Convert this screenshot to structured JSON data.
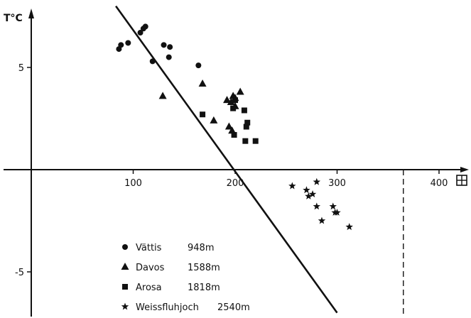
{
  "chart_data": {
    "type": "scatter",
    "title": "",
    "ylabel": "T°C",
    "xunit_symbol": "grid-square-symbol",
    "xlim": [
      -10,
      455
    ],
    "ylim": [
      -7,
      8.5
    ],
    "x_ticks": [
      100,
      200,
      300,
      400
    ],
    "y_ticks": [
      5,
      -5
    ],
    "x_tick_labels": [
      "100",
      "200",
      "300",
      "400"
    ],
    "y_tick_labels": [
      "5",
      "-5"
    ],
    "grid": false,
    "legend_position": "bottom-left",
    "reference_vertical_line": {
      "x": 365,
      "style": "dashed"
    },
    "fit_line": {
      "x1": 83,
      "y1": 8.0,
      "x2": 300,
      "y2": -7.0
    },
    "series": [
      {
        "name": "Vättis",
        "elevation": "948m",
        "marker": "circle",
        "points": [
          {
            "x": 86,
            "y": 5.9
          },
          {
            "x": 88,
            "y": 6.1
          },
          {
            "x": 95,
            "y": 6.2
          },
          {
            "x": 107,
            "y": 6.7
          },
          {
            "x": 110,
            "y": 6.9
          },
          {
            "x": 112,
            "y": 7.0
          },
          {
            "x": 119,
            "y": 5.3
          },
          {
            "x": 130,
            "y": 6.1
          },
          {
            "x": 135,
            "y": 5.5
          },
          {
            "x": 136,
            "y": 6.0
          },
          {
            "x": 164,
            "y": 5.1
          }
        ]
      },
      {
        "name": "Davos",
        "elevation": "1588m",
        "marker": "triangle",
        "points": [
          {
            "x": 129,
            "y": 3.6
          },
          {
            "x": 168,
            "y": 4.2
          },
          {
            "x": 179,
            "y": 2.4
          },
          {
            "x": 192,
            "y": 3.4
          },
          {
            "x": 196,
            "y": 3.3
          },
          {
            "x": 198,
            "y": 3.6
          },
          {
            "x": 200,
            "y": 3.5
          },
          {
            "x": 200,
            "y": 3.1
          },
          {
            "x": 205,
            "y": 3.8
          },
          {
            "x": 194,
            "y": 2.1
          },
          {
            "x": 197,
            "y": 1.9
          }
        ]
      },
      {
        "name": "Arosa",
        "elevation": "1818m",
        "marker": "square",
        "points": [
          {
            "x": 168,
            "y": 2.7
          },
          {
            "x": 198,
            "y": 3.0
          },
          {
            "x": 199,
            "y": 1.7
          },
          {
            "x": 200,
            "y": 3.4
          },
          {
            "x": 209,
            "y": 2.9
          },
          {
            "x": 210,
            "y": 1.4
          },
          {
            "x": 211,
            "y": 2.1
          },
          {
            "x": 212,
            "y": 2.3
          },
          {
            "x": 220,
            "y": 1.4
          }
        ]
      },
      {
        "name": "Weissfluhjoch",
        "elevation": "2540m",
        "marker": "star",
        "points": [
          {
            "x": 256,
            "y": -0.8
          },
          {
            "x": 270,
            "y": -1.0
          },
          {
            "x": 272,
            "y": -1.3
          },
          {
            "x": 276,
            "y": -1.2
          },
          {
            "x": 280,
            "y": -0.6
          },
          {
            "x": 280,
            "y": -1.8
          },
          {
            "x": 285,
            "y": -2.5
          },
          {
            "x": 296,
            "y": -1.8
          },
          {
            "x": 298,
            "y": -2.1
          },
          {
            "x": 300,
            "y": -2.1
          },
          {
            "x": 312,
            "y": -2.8
          }
        ]
      }
    ]
  }
}
